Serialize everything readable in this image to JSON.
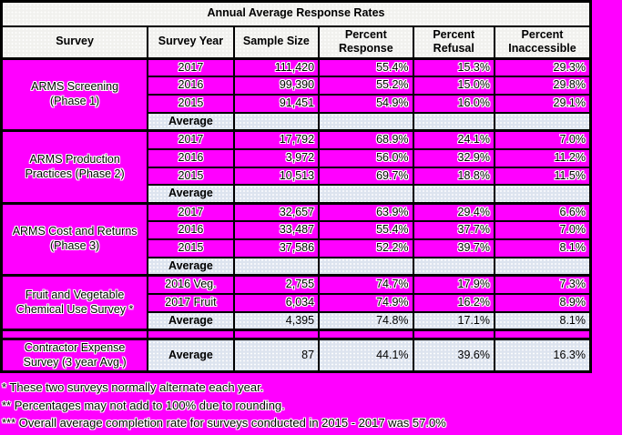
{
  "window": {
    "background_color": "#ff00ff"
  },
  "colors": {
    "magenta": "#ff00ff",
    "panel_gray": "#f1f1ee",
    "average_blue": "#dde4ef",
    "border_black": "#000000"
  },
  "table": {
    "title": "Annual Average Response Rates",
    "columns": [
      "Survey",
      "Survey Year",
      "Sample Size",
      "Percent Response",
      "Percent Refusal",
      "Percent Inaccessible"
    ],
    "blocks": [
      {
        "type": "survey",
        "survey_lines": [
          "ARMS Screening",
          "(Phase 1)"
        ],
        "rows": [
          {
            "year": "2017",
            "sample_size": "111,420",
            "response": "55.4%",
            "refusal": "15.3%",
            "inaccessible": "29.3%"
          },
          {
            "year": "2016",
            "sample_size": "99,390",
            "response": "55.2%",
            "refusal": "15.0%",
            "inaccessible": "29.8%"
          },
          {
            "year": "2015",
            "sample_size": "91,451",
            "response": "54.9%",
            "refusal": "16.0%",
            "inaccessible": "29.1%"
          }
        ],
        "average": {
          "label": "Average",
          "sample_size": "",
          "response": "",
          "refusal": "",
          "inaccessible": ""
        }
      },
      {
        "type": "survey",
        "survey_lines": [
          "ARMS Production",
          "Practices (Phase 2)"
        ],
        "rows": [
          {
            "year": "2017",
            "sample_size": "17,792",
            "response": "68.9%",
            "refusal": "24.1%",
            "inaccessible": "7.0%"
          },
          {
            "year": "2016",
            "sample_size": "3,972",
            "response": "56.0%",
            "refusal": "32.9%",
            "inaccessible": "11.2%"
          },
          {
            "year": "2015",
            "sample_size": "10,513",
            "response": "69.7%",
            "refusal": "18.8%",
            "inaccessible": "11.5%"
          }
        ],
        "average": {
          "label": "Average",
          "sample_size": "",
          "response": "",
          "refusal": "",
          "inaccessible": ""
        }
      },
      {
        "type": "survey",
        "survey_lines": [
          "ARMS Cost and Returns",
          "(Phase 3)"
        ],
        "rows": [
          {
            "year": "2017",
            "sample_size": "32,657",
            "response": "63.9%",
            "refusal": "29.4%",
            "inaccessible": "6.6%"
          },
          {
            "year": "2016",
            "sample_size": "33,487",
            "response": "55.4%",
            "refusal": "37.7%",
            "inaccessible": "7.0%"
          },
          {
            "year": "2015",
            "sample_size": "37,586",
            "response": "52.2%",
            "refusal": "39.7%",
            "inaccessible": "8.1%"
          }
        ],
        "average": {
          "label": "Average",
          "sample_size": "",
          "response": "",
          "refusal": "",
          "inaccessible": ""
        }
      },
      {
        "type": "survey",
        "survey_lines": [
          "Fruit and Vegetable",
          "Chemical Use Survey *"
        ],
        "rows": [
          {
            "year": "2016 Veg.",
            "sample_size": "2,755",
            "response": "74.7%",
            "refusal": "17.9%",
            "inaccessible": "7.3%"
          },
          {
            "year": "2017 Fruit",
            "sample_size": "6,034",
            "response": "74.9%",
            "refusal": "16.2%",
            "inaccessible": "8.9%"
          }
        ],
        "average": {
          "label": "Average",
          "sample_size": "4,395",
          "response": "74.8%",
          "refusal": "17.1%",
          "inaccessible": "8.1%"
        }
      },
      {
        "type": "spacer"
      },
      {
        "type": "survey",
        "survey_lines": [
          "Contractor Expense",
          "Survey (3 year Avg.)"
        ],
        "rows": [],
        "average": {
          "label": "Average",
          "sample_size": "87",
          "response": "44.1%",
          "refusal": "39.6%",
          "inaccessible": "16.3%"
        }
      }
    ]
  },
  "footnotes": [
    "* These two surveys normally alternate each year.",
    "** Percentages may not add to 100% due to rounding.",
    "*** Overall average completion rate for surveys conducted in 2015 - 2017 was 57.0%"
  ]
}
